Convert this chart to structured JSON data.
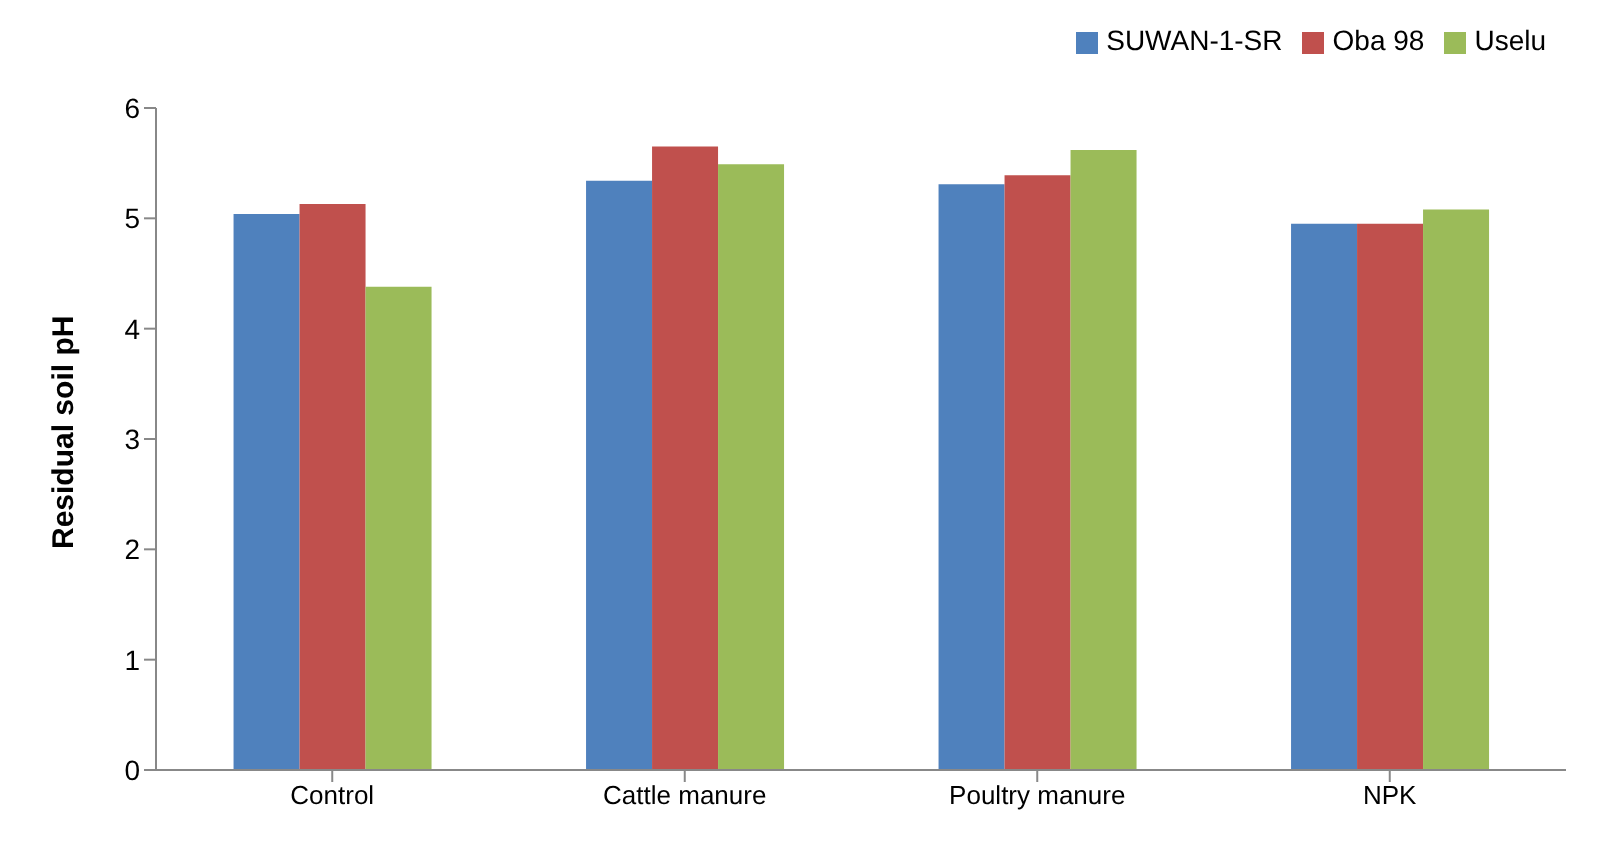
{
  "chart_data": {
    "type": "bar",
    "ylabel": "Residual soil pH",
    "categories": [
      "Control",
      "Cattle manure",
      "Poultry manure",
      "NPK"
    ],
    "series": [
      {
        "name": "SUWAN-1-SR",
        "color": "#4f81bd",
        "values": [
          5.04,
          5.34,
          5.31,
          4.95
        ]
      },
      {
        "name": "Oba 98",
        "color": "#c0504d",
        "values": [
          5.13,
          5.65,
          5.39,
          4.95
        ]
      },
      {
        "name": "Uselu",
        "color": "#9bbb59",
        "values": [
          4.38,
          5.49,
          5.62,
          5.08
        ]
      }
    ],
    "ylim": [
      0,
      6
    ],
    "yticks": [
      0,
      1,
      2,
      3,
      4,
      5,
      6
    ],
    "grid": false,
    "legend": "top right"
  }
}
